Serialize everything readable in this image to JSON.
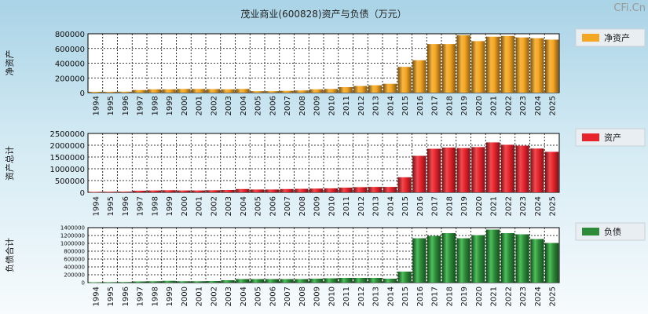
{
  "title": "茂业商业(600828)资产与负债（万元）",
  "watermark": "CFi.Cn",
  "years": [
    "1994",
    "1995",
    "1996",
    "1997",
    "1998",
    "1999",
    "2000",
    "2001",
    "2002",
    "2003",
    "2004",
    "2005",
    "2006",
    "2007",
    "2008",
    "2009",
    "2010",
    "2011",
    "2012",
    "2013",
    "2014",
    "2015",
    "2016",
    "2017",
    "2018",
    "2019",
    "2020",
    "2021",
    "2022",
    "2023",
    "2024",
    "2025"
  ],
  "chart_data": [
    {
      "type": "bar",
      "ylabel": "净资产",
      "ylim": [
        0,
        800000
      ],
      "yticks": [
        0,
        200000,
        400000,
        600000,
        800000
      ],
      "series": [
        {
          "name": "净资产",
          "color": "#f5a623",
          "values": [
            12000,
            12000,
            13000,
            35000,
            45000,
            45000,
            50000,
            50000,
            48000,
            45000,
            50000,
            20000,
            20000,
            25000,
            30000,
            45000,
            50000,
            75000,
            90000,
            100000,
            120000,
            350000,
            440000,
            660000,
            660000,
            780000,
            700000,
            760000,
            770000,
            750000,
            740000,
            720000
          ]
        }
      ]
    },
    {
      "type": "bar",
      "ylabel": "资产总计",
      "ylim": [
        0,
        2500000
      ],
      "yticks": [
        0,
        500000,
        1000000,
        1500000,
        2000000,
        2500000
      ],
      "series": [
        {
          "name": "资产",
          "color": "#e8232b",
          "values": [
            20000,
            25000,
            30000,
            70000,
            80000,
            90000,
            80000,
            80000,
            90000,
            100000,
            140000,
            120000,
            120000,
            140000,
            150000,
            160000,
            170000,
            200000,
            220000,
            230000,
            230000,
            640000,
            1550000,
            1850000,
            1900000,
            1880000,
            1920000,
            2120000,
            2020000,
            1980000,
            1860000,
            1720000
          ]
        }
      ]
    },
    {
      "type": "bar",
      "ylabel": "负债合计",
      "ylim": [
        0,
        1400000
      ],
      "yticks": [
        0,
        200000,
        400000,
        600000,
        800000,
        1000000,
        1200000,
        1400000
      ],
      "series": [
        {
          "name": "负债",
          "color": "#2e8b3a",
          "values": [
            10000,
            12000,
            15000,
            30000,
            35000,
            45000,
            35000,
            35000,
            40000,
            60000,
            90000,
            90000,
            90000,
            90000,
            90000,
            100000,
            110000,
            120000,
            120000,
            120000,
            100000,
            280000,
            1130000,
            1190000,
            1260000,
            1130000,
            1210000,
            1350000,
            1260000,
            1230000,
            1110000,
            1010000
          ]
        }
      ]
    }
  ]
}
